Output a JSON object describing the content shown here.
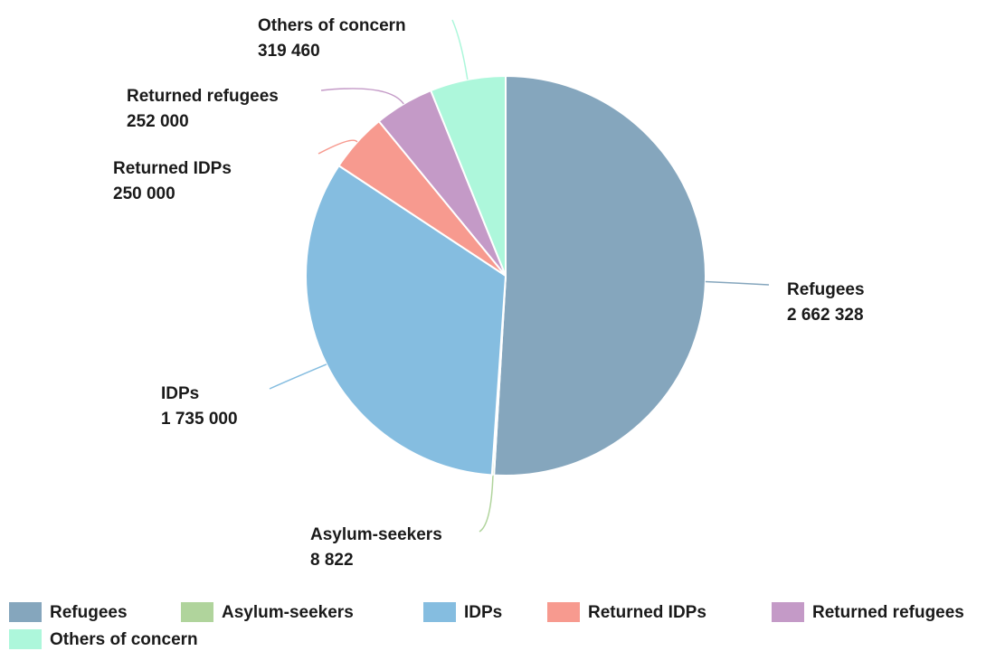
{
  "chart_data": {
    "type": "pie",
    "categories": [
      "Refugees",
      "Asylum-seekers",
      "IDPs",
      "Returned IDPs",
      "Returned refugees",
      "Others of concern"
    ],
    "values": [
      2662328,
      8822,
      1735000,
      250000,
      252000,
      319460
    ],
    "value_labels": [
      "2 662 328",
      "8 822",
      "1 735 000",
      "250 000",
      "252 000",
      "319 460"
    ],
    "colors": [
      "#85a6bd",
      "#b0d49c",
      "#85bde0",
      "#f79a8f",
      "#c49ac7",
      "#adf7db"
    ],
    "legend": "bottom"
  }
}
